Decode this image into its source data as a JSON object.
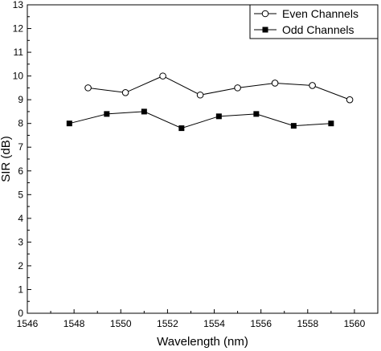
{
  "chart_data": {
    "type": "line",
    "xlabel": "Wavelength (nm)",
    "ylabel": "SIR (dB)",
    "xlim": [
      1546,
      1561
    ],
    "ylim": [
      0,
      13
    ],
    "x_ticks": [
      1546,
      1548,
      1550,
      1552,
      1554,
      1556,
      1558,
      1560
    ],
    "y_ticks": [
      0,
      1,
      2,
      3,
      4,
      5,
      6,
      7,
      8,
      9,
      10,
      11,
      12,
      13
    ],
    "grid": false,
    "legend_position": "top-right",
    "series": [
      {
        "name": "Even Channels",
        "marker": "open-circle",
        "color": "#000000",
        "x": [
          1548.6,
          1550.2,
          1551.8,
          1553.4,
          1555.0,
          1556.6,
          1558.2,
          1559.8
        ],
        "y": [
          9.5,
          9.3,
          10.0,
          9.2,
          9.5,
          9.7,
          9.6,
          9.0
        ]
      },
      {
        "name": "Odd Channels",
        "marker": "filled-square",
        "color": "#000000",
        "x": [
          1547.8,
          1549.4,
          1551.0,
          1552.6,
          1554.2,
          1555.8,
          1557.4,
          1559.0
        ],
        "y": [
          8.0,
          8.4,
          8.5,
          7.8,
          8.3,
          8.4,
          7.9,
          8.0
        ]
      }
    ]
  }
}
